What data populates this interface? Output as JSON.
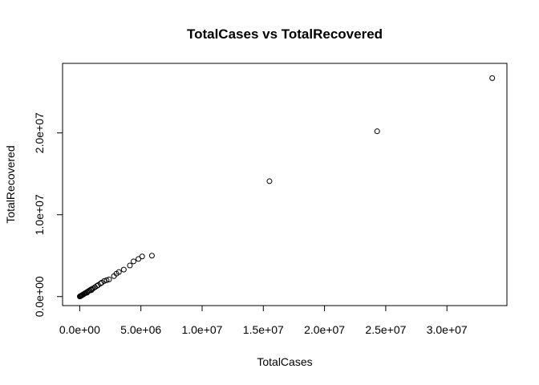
{
  "chart_data": {
    "type": "scatter",
    "title": "TotalCases  vs TotalRecovered",
    "xlabel": "TotalCases",
    "ylabel": "TotalRecovered",
    "xlim": [
      -1400000,
      34900000
    ],
    "ylim": [
      -1100000,
      28500000
    ],
    "xticks": [
      0,
      5000000,
      10000000,
      15000000,
      20000000,
      25000000,
      30000000
    ],
    "xtick_labels": [
      "0.0e+00",
      "5.0e+06",
      "1.0e+07",
      "1.5e+07",
      "2.0e+07",
      "2.5e+07",
      "3.0e+07"
    ],
    "yticks": [
      0,
      10000000,
      20000000
    ],
    "ytick_labels": [
      "0.0e+00",
      "1.0e+07",
      "2.0e+07"
    ],
    "grid": false,
    "marker": "open-circle",
    "points": [
      [
        33700000,
        26700000
      ],
      [
        24300000,
        20200000
      ],
      [
        15500000,
        14100000
      ],
      [
        5900000,
        5000000
      ],
      [
        5100000,
        4900000
      ],
      [
        4800000,
        4600000
      ],
      [
        4400000,
        4300000
      ],
      [
        4100000,
        3800000
      ],
      [
        3600000,
        3300000
      ],
      [
        3200000,
        3000000
      ],
      [
        3000000,
        2800000
      ],
      [
        2800000,
        2500000
      ],
      [
        2400000,
        2100000
      ],
      [
        2200000,
        2000000
      ],
      [
        2000000,
        1900000
      ],
      [
        1800000,
        1700000
      ],
      [
        1700000,
        1600000
      ],
      [
        1500000,
        1400000
      ],
      [
        1400000,
        1300000
      ],
      [
        1250000,
        1150000
      ],
      [
        1100000,
        1000000
      ],
      [
        1000000,
        920000
      ],
      [
        900000,
        850000
      ],
      [
        800000,
        750000
      ],
      [
        700000,
        650000
      ],
      [
        600000,
        560000
      ],
      [
        500000,
        470000
      ],
      [
        420000,
        390000
      ],
      [
        350000,
        320000
      ],
      [
        280000,
        260000
      ],
      [
        220000,
        200000
      ],
      [
        170000,
        150000
      ],
      [
        120000,
        110000
      ],
      [
        80000,
        70000
      ],
      [
        50000,
        45000
      ],
      [
        25000,
        22000
      ],
      [
        10000,
        9000
      ],
      [
        600000,
        480000
      ],
      [
        950000,
        780000
      ]
    ]
  }
}
